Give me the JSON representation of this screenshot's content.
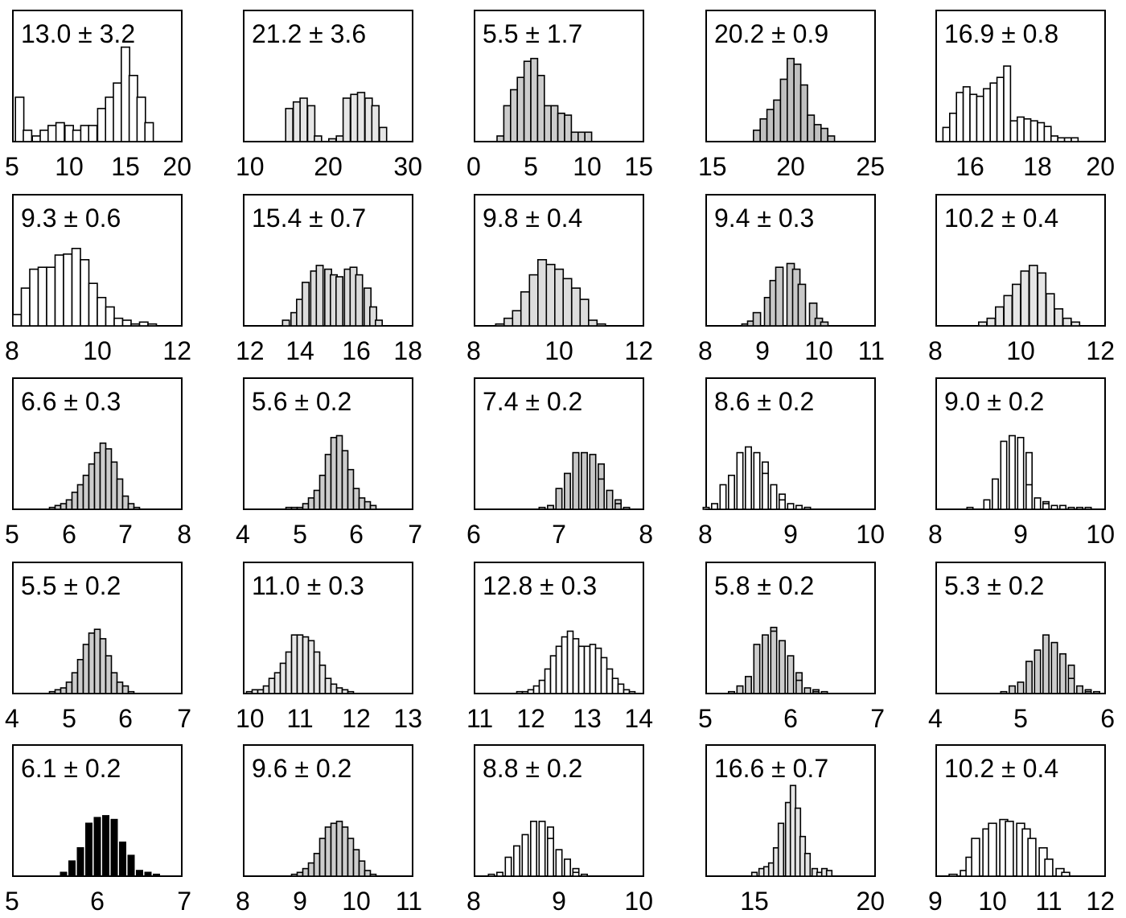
{
  "chart_data": [
    {
      "type": "bar",
      "title": "13.0 ± 3.2",
      "xlim": [
        5,
        20
      ],
      "xticks": [
        5,
        10,
        15,
        20
      ],
      "fill": "#ffffff",
      "bin_width": 0.74,
      "x": [
        5.6,
        6.3,
        7.1,
        7.8,
        8.5,
        9.2,
        10.0,
        10.7,
        11.4,
        12.1,
        12.9,
        13.6,
        14.3,
        15.0,
        15.7,
        16.4,
        17.1
      ],
      "values": [
        0.47,
        0.12,
        0.06,
        0.12,
        0.17,
        0.2,
        0.17,
        0.12,
        0.17,
        0.17,
        0.35,
        0.47,
        0.62,
        1.0,
        0.7,
        0.47,
        0.2
      ]
    },
    {
      "type": "bar",
      "title": "21.2 ± 3.6",
      "xlim": [
        10,
        30
      ],
      "xticks": [
        10,
        20,
        30
      ],
      "fill": "#e6e6e6",
      "bin_width": 0.85,
      "x": [
        15.4,
        16.3,
        17.1,
        18.0,
        18.8,
        19.7,
        20.5,
        21.4,
        22.2,
        23.1,
        23.9,
        24.8,
        25.6,
        26.5
      ],
      "values": [
        0.35,
        0.42,
        0.46,
        0.38,
        0.06,
        0.0,
        0.03,
        0.06,
        0.46,
        0.5,
        0.52,
        0.46,
        0.38,
        0.15
      ]
    },
    {
      "type": "bar",
      "title": "5.5 ± 1.7",
      "xlim": [
        0,
        15
      ],
      "xticks": [
        0,
        5,
        10,
        15
      ],
      "fill": "#cccccc",
      "bin_width": 0.6,
      "x": [
        2.3,
        2.9,
        3.5,
        4.1,
        4.7,
        5.3,
        5.9,
        6.5,
        7.1,
        7.7,
        8.3,
        8.9,
        9.5,
        10.1
      ],
      "values": [
        0.06,
        0.38,
        0.55,
        0.68,
        0.85,
        0.88,
        0.7,
        0.38,
        0.38,
        0.3,
        0.28,
        0.1,
        0.1,
        0.1
      ]
    },
    {
      "type": "bar",
      "title": "20.2 ± 0.9",
      "xlim": [
        15,
        25
      ],
      "xticks": [
        15,
        20,
        25
      ],
      "fill": "#c0c0c0",
      "bin_width": 0.4,
      "x": [
        18.0,
        18.4,
        18.8,
        19.2,
        19.6,
        20.0,
        20.4,
        20.8,
        21.2,
        21.6,
        22.0,
        22.4
      ],
      "values": [
        0.12,
        0.24,
        0.34,
        0.44,
        0.66,
        0.88,
        0.82,
        0.6,
        0.28,
        0.18,
        0.14,
        0.06
      ]
    },
    {
      "type": "bar",
      "title": "16.9 ± 0.8",
      "xlim": [
        15,
        20
      ],
      "xticks": [
        16,
        18,
        20
      ],
      "fill": "#ffffff",
      "bin_width": 0.2,
      "x": [
        15.3,
        15.5,
        15.7,
        15.9,
        16.1,
        16.3,
        16.5,
        16.7,
        16.9,
        17.1,
        17.3,
        17.5,
        17.7,
        17.9,
        18.1,
        18.3,
        18.5,
        18.7,
        18.9,
        19.1
      ],
      "values": [
        0.15,
        0.3,
        0.52,
        0.58,
        0.5,
        0.48,
        0.56,
        0.62,
        0.68,
        0.8,
        0.22,
        0.26,
        0.24,
        0.22,
        0.2,
        0.16,
        0.06,
        0.04,
        0.04,
        0.04
      ]
    },
    {
      "type": "bar",
      "title": "9.3 ± 0.6",
      "xlim": [
        8,
        12
      ],
      "xticks": [
        8,
        10,
        12
      ],
      "fill": "#ffffff",
      "bin_width": 0.2,
      "x": [
        8.1,
        8.3,
        8.5,
        8.7,
        8.9,
        9.1,
        9.3,
        9.5,
        9.7,
        9.9,
        10.1,
        10.3,
        10.5,
        10.7,
        10.9,
        11.1,
        11.3
      ],
      "values": [
        0.12,
        0.4,
        0.6,
        0.62,
        0.62,
        0.75,
        0.76,
        0.82,
        0.7,
        0.45,
        0.3,
        0.2,
        0.08,
        0.06,
        0.02,
        0.04,
        0.02
      ]
    },
    {
      "type": "bar",
      "title": "15.4 ± 0.7",
      "xlim": [
        12,
        18
      ],
      "xticks": [
        12,
        14,
        16,
        18
      ],
      "fill": "#dcdcdc",
      "bin_width": 0.24,
      "x": [
        13.5,
        13.8,
        14.0,
        14.2,
        14.5,
        14.7,
        15.0,
        15.2,
        15.4,
        15.7,
        15.9,
        16.1,
        16.4,
        16.6,
        16.8
      ],
      "values": [
        0.06,
        0.14,
        0.28,
        0.46,
        0.58,
        0.64,
        0.6,
        0.54,
        0.52,
        0.6,
        0.62,
        0.54,
        0.4,
        0.2,
        0.06
      ]
    },
    {
      "type": "bar",
      "title": "9.8 ± 0.4",
      "xlim": [
        8,
        12
      ],
      "xticks": [
        8,
        10,
        12
      ],
      "fill": "#dddddd",
      "bin_width": 0.2,
      "x": [
        8.6,
        8.8,
        9.0,
        9.2,
        9.4,
        9.6,
        9.8,
        10.0,
        10.2,
        10.4,
        10.6,
        10.8,
        11.0
      ],
      "values": [
        0.02,
        0.08,
        0.16,
        0.36,
        0.54,
        0.7,
        0.65,
        0.6,
        0.5,
        0.4,
        0.28,
        0.06,
        0.02
      ]
    },
    {
      "type": "bar",
      "title": "9.4 ± 0.3",
      "xlim": [
        8,
        11
      ],
      "xticks": [
        8,
        9,
        10,
        11
      ],
      "fill": "#c8c8c8",
      "bin_width": 0.13,
      "x": [
        8.7,
        8.8,
        8.9,
        9.1,
        9.2,
        9.3,
        9.5,
        9.6,
        9.7,
        9.9,
        10.0,
        10.1
      ],
      "values": [
        0.02,
        0.05,
        0.14,
        0.3,
        0.48,
        0.62,
        0.66,
        0.6,
        0.44,
        0.24,
        0.08,
        0.04
      ]
    },
    {
      "type": "bar",
      "title": "10.2 ± 0.4",
      "xlim": [
        8,
        12
      ],
      "xticks": [
        8,
        10,
        12
      ],
      "fill": "#e6e6e6",
      "bin_width": 0.19,
      "x": [
        9.1,
        9.3,
        9.5,
        9.7,
        9.9,
        10.1,
        10.3,
        10.5,
        10.7,
        10.9,
        11.1,
        11.3
      ],
      "values": [
        0.04,
        0.08,
        0.2,
        0.32,
        0.44,
        0.58,
        0.64,
        0.56,
        0.34,
        0.18,
        0.08,
        0.04
      ]
    },
    {
      "type": "bar",
      "title": "6.6 ± 0.3",
      "xlim": [
        5,
        8
      ],
      "xticks": [
        5,
        6,
        7,
        8
      ],
      "fill": "#cccccc",
      "bin_width": 0.1,
      "x": [
        5.7,
        5.8,
        5.9,
        6.0,
        6.1,
        6.2,
        6.3,
        6.4,
        6.5,
        6.6,
        6.7,
        6.8,
        6.9,
        7.0,
        7.1,
        7.2
      ],
      "values": [
        0.02,
        0.04,
        0.06,
        0.1,
        0.18,
        0.26,
        0.36,
        0.48,
        0.6,
        0.7,
        0.64,
        0.5,
        0.32,
        0.14,
        0.06,
        0.02
      ]
    },
    {
      "type": "bar",
      "title": "5.6 ± 0.2",
      "xlim": [
        4,
        7
      ],
      "xticks": [
        4,
        5,
        6,
        7
      ],
      "fill": "#cccccc",
      "bin_width": 0.1,
      "x": [
        4.8,
        4.9,
        5.0,
        5.1,
        5.2,
        5.3,
        5.4,
        5.5,
        5.6,
        5.7,
        5.8,
        5.9,
        6.0,
        6.1,
        6.2,
        6.3
      ],
      "values": [
        0.02,
        0.02,
        0.02,
        0.06,
        0.12,
        0.2,
        0.36,
        0.58,
        0.76,
        0.78,
        0.62,
        0.42,
        0.22,
        0.12,
        0.08,
        0.04
      ]
    },
    {
      "type": "bar",
      "title": "7.4 ± 0.2",
      "xlim": [
        6,
        8
      ],
      "xticks": [
        6,
        7,
        8
      ],
      "fill": "#c8c8c8",
      "bin_width": 0.07,
      "x": [
        6.8,
        6.9,
        7.0,
        7.0,
        7.1,
        7.2,
        7.2,
        7.3,
        7.4,
        7.5,
        7.5,
        7.6,
        7.7,
        7.7,
        7.8
      ],
      "values": [
        0.02,
        0.04,
        0.08,
        0.22,
        0.38,
        0.54,
        0.6,
        0.6,
        0.58,
        0.48,
        0.32,
        0.2,
        0.1,
        0.06,
        0.02
      ]
    },
    {
      "type": "bar",
      "title": "8.6 ± 0.2",
      "xlim": [
        8,
        10
      ],
      "xticks": [
        8,
        9,
        10
      ],
      "fill": "#ffffff",
      "bin_width": 0.07,
      "x": [
        8.0,
        8.1,
        8.2,
        8.2,
        8.3,
        8.4,
        8.4,
        8.5,
        8.6,
        8.7,
        8.7,
        8.8,
        8.9,
        8.9,
        9.0,
        9.1,
        9.2,
        9.2
      ],
      "values": [
        0.02,
        0.06,
        0.16,
        0.26,
        0.36,
        0.5,
        0.6,
        0.66,
        0.6,
        0.5,
        0.38,
        0.26,
        0.16,
        0.1,
        0.06,
        0.04,
        0.02,
        0.02
      ]
    },
    {
      "type": "bar",
      "title": "9.0 ± 0.2",
      "xlim": [
        8,
        10
      ],
      "xticks": [
        8,
        9,
        10
      ],
      "fill": "#ffffff",
      "bin_width": 0.07,
      "x": [
        8.4,
        8.6,
        8.6,
        8.7,
        8.8,
        8.8,
        8.9,
        9.0,
        9.1,
        9.1,
        9.2,
        9.3,
        9.3,
        9.4,
        9.5,
        9.6,
        9.7,
        9.8
      ],
      "values": [
        0.02,
        0.04,
        0.1,
        0.32,
        0.5,
        0.72,
        0.78,
        0.76,
        0.6,
        0.26,
        0.12,
        0.08,
        0.06,
        0.04,
        0.04,
        0.02,
        0.02,
        0.02
      ]
    },
    {
      "type": "bar",
      "title": "5.5 ± 0.2",
      "xlim": [
        4,
        7
      ],
      "xticks": [
        4,
        5,
        6,
        7
      ],
      "fill": "#cccccc",
      "bin_width": 0.1,
      "x": [
        4.7,
        4.8,
        4.9,
        5.0,
        5.1,
        5.2,
        5.3,
        5.4,
        5.5,
        5.6,
        5.7,
        5.8,
        5.9,
        6.0,
        6.1
      ],
      "values": [
        0.02,
        0.04,
        0.06,
        0.12,
        0.22,
        0.36,
        0.52,
        0.64,
        0.68,
        0.58,
        0.4,
        0.22,
        0.12,
        0.08,
        0.02
      ]
    },
    {
      "type": "bar",
      "title": "11.0 ± 0.3",
      "xlim": [
        10,
        13
      ],
      "xticks": [
        10,
        11,
        12,
        13
      ],
      "fill": "#e6e6e6",
      "bin_width": 0.1,
      "x": [
        10.1,
        10.2,
        10.3,
        10.4,
        10.5,
        10.6,
        10.7,
        10.8,
        10.9,
        11.0,
        11.1,
        11.2,
        11.3,
        11.4,
        11.5,
        11.6,
        11.7,
        11.8,
        11.9
      ],
      "values": [
        0.02,
        0.04,
        0.04,
        0.08,
        0.16,
        0.22,
        0.32,
        0.44,
        0.62,
        0.62,
        0.6,
        0.56,
        0.44,
        0.3,
        0.16,
        0.1,
        0.06,
        0.04,
        0.02
      ]
    },
    {
      "type": "bar",
      "title": "12.8 ± 0.3",
      "xlim": [
        11,
        14
      ],
      "xticks": [
        11,
        12,
        13,
        14
      ],
      "fill": "#ffffff",
      "bin_width": 0.1,
      "x": [
        11.8,
        11.9,
        12.0,
        12.1,
        12.2,
        12.3,
        12.4,
        12.5,
        12.6,
        12.7,
        12.8,
        12.9,
        13.0,
        13.1,
        13.2,
        13.3,
        13.4,
        13.5,
        13.6,
        13.7,
        13.8
      ],
      "values": [
        0.02,
        0.02,
        0.04,
        0.08,
        0.14,
        0.26,
        0.4,
        0.5,
        0.6,
        0.66,
        0.58,
        0.5,
        0.5,
        0.52,
        0.48,
        0.38,
        0.26,
        0.16,
        0.1,
        0.04,
        0.02
      ]
    },
    {
      "type": "bar",
      "title": "5.8 ± 0.2",
      "xlim": [
        5,
        7
      ],
      "xticks": [
        5,
        6,
        7
      ],
      "fill": "#cccccc",
      "bin_width": 0.07,
      "x": [
        5.3,
        5.4,
        5.4,
        5.5,
        5.6,
        5.6,
        5.7,
        5.8,
        5.8,
        5.9,
        6.0,
        6.1,
        6.1,
        6.2,
        6.3,
        6.3,
        6.4
      ],
      "values": [
        0.02,
        0.04,
        0.08,
        0.18,
        0.32,
        0.52,
        0.62,
        0.7,
        0.66,
        0.56,
        0.4,
        0.22,
        0.14,
        0.06,
        0.04,
        0.02,
        0.02
      ]
    },
    {
      "type": "bar",
      "title": "5.3 ± 0.2",
      "xlim": [
        4,
        6
      ],
      "xticks": [
        4,
        5,
        6
      ],
      "fill": "#cccccc",
      "bin_width": 0.07,
      "x": [
        4.8,
        4.9,
        4.9,
        5.0,
        5.1,
        5.1,
        5.2,
        5.3,
        5.3,
        5.4,
        5.5,
        5.6,
        5.6,
        5.7,
        5.8,
        5.8,
        5.9
      ],
      "values": [
        0.02,
        0.04,
        0.08,
        0.12,
        0.22,
        0.34,
        0.46,
        0.6,
        0.62,
        0.54,
        0.42,
        0.3,
        0.16,
        0.08,
        0.04,
        0.02,
        0.02
      ]
    },
    {
      "type": "bar",
      "title": "6.1 ± 0.2",
      "xlim": [
        5,
        7
      ],
      "xticks": [
        5,
        6,
        7
      ],
      "fill": "#000000",
      "bin_width": 0.07,
      "x": [
        5.6,
        5.7,
        5.7,
        5.8,
        5.9,
        5.9,
        6.0,
        6.1,
        6.2,
        6.2,
        6.3,
        6.4,
        6.4,
        6.5,
        6.6,
        6.7
      ],
      "values": [
        0.04,
        0.08,
        0.16,
        0.3,
        0.44,
        0.56,
        0.62,
        0.64,
        0.6,
        0.5,
        0.36,
        0.22,
        0.12,
        0.06,
        0.04,
        0.02
      ]
    },
    {
      "type": "bar",
      "title": "9.6 ± 0.2",
      "xlim": [
        8,
        11
      ],
      "xticks": [
        8,
        9,
        10,
        11
      ],
      "fill": "#cccccc",
      "bin_width": 0.1,
      "x": [
        8.9,
        9.0,
        9.1,
        9.2,
        9.3,
        9.4,
        9.5,
        9.6,
        9.7,
        9.8,
        9.9,
        10.0,
        10.1,
        10.2,
        10.3
      ],
      "values": [
        0.02,
        0.04,
        0.08,
        0.14,
        0.24,
        0.4,
        0.52,
        0.56,
        0.58,
        0.52,
        0.4,
        0.28,
        0.16,
        0.06,
        0.02
      ]
    },
    {
      "type": "bar",
      "title": "8.8 ± 0.2",
      "xlim": [
        8,
        10
      ],
      "xticks": [
        8,
        9,
        10
      ],
      "fill": "#ffffff",
      "bin_width": 0.07,
      "x": [
        8.2,
        8.3,
        8.4,
        8.4,
        8.5,
        8.6,
        8.7,
        8.7,
        8.8,
        8.9,
        8.9,
        9.0,
        9.1,
        9.2,
        9.2,
        9.3
      ],
      "values": [
        0.02,
        0.04,
        0.1,
        0.2,
        0.32,
        0.44,
        0.54,
        0.58,
        0.58,
        0.52,
        0.4,
        0.28,
        0.18,
        0.08,
        0.04,
        0.02
      ]
    },
    {
      "type": "bar",
      "title": "16.6 ± 0.7",
      "xlim": [
        13,
        20
      ],
      "xticks": [
        15,
        20
      ],
      "fill": "#e6e6e6",
      "bin_width": 0.22,
      "x": [
        15.0,
        15.3,
        15.5,
        15.7,
        15.9,
        16.1,
        16.4,
        16.6,
        16.8,
        17.0,
        17.2,
        17.5,
        17.7,
        17.9,
        18.1
      ],
      "values": [
        0.04,
        0.08,
        0.1,
        0.14,
        0.3,
        0.56,
        0.78,
        0.96,
        0.72,
        0.42,
        0.24,
        0.08,
        0.04,
        0.08,
        0.06
      ]
    },
    {
      "type": "bar",
      "title": "10.2 ± 0.4",
      "xlim": [
        9,
        12
      ],
      "xticks": [
        9,
        10,
        11,
        12
      ],
      "fill": "#ffffff",
      "bin_width": 0.14,
      "x": [
        9.3,
        9.5,
        9.6,
        9.7,
        9.9,
        10.0,
        10.2,
        10.3,
        10.5,
        10.6,
        10.7,
        10.9,
        11.0,
        11.2,
        11.3
      ],
      "values": [
        0.02,
        0.06,
        0.2,
        0.4,
        0.5,
        0.56,
        0.6,
        0.58,
        0.56,
        0.5,
        0.4,
        0.3,
        0.18,
        0.08,
        0.04
      ]
    }
  ]
}
